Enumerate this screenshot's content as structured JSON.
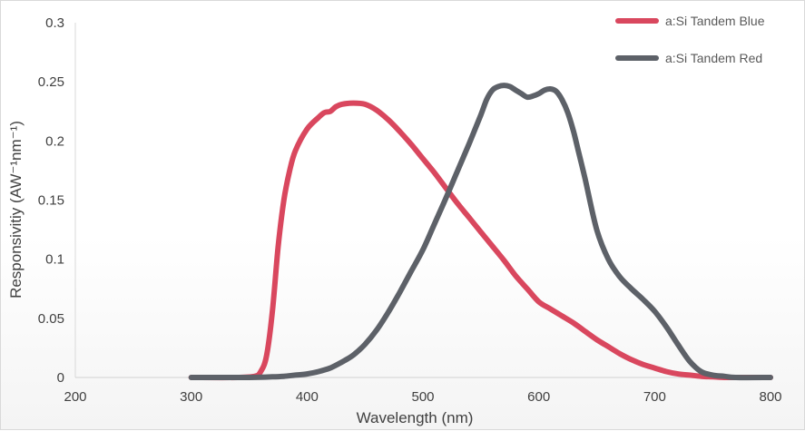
{
  "chart_data": {
    "type": "line",
    "title": "",
    "xlabel": "Wavelength (nm)",
    "ylabel": "Responsivitiy (AW⁻¹nm⁻¹)",
    "xlim": [
      200,
      800
    ],
    "ylim": [
      0,
      0.3
    ],
    "xticks": [
      "200",
      "300",
      "400",
      "500",
      "600",
      "700",
      "800"
    ],
    "yticks": [
      "0",
      "0.05",
      "0.1",
      "0.15",
      "0.2",
      "0.25",
      "0.3"
    ],
    "grid": false,
    "legend_position": "top-right",
    "series": [
      {
        "name": "a:Si Tandem Blue",
        "color": "#d9475e",
        "x": [
          300,
          340,
          355,
          360,
          365,
          370,
          375,
          380,
          385,
          390,
          400,
          410,
          415,
          420,
          425,
          430,
          440,
          450,
          460,
          470,
          480,
          490,
          500,
          510,
          520,
          530,
          540,
          550,
          560,
          570,
          580,
          590,
          600,
          610,
          620,
          630,
          640,
          650,
          660,
          670,
          680,
          690,
          700,
          710,
          720,
          730,
          740,
          750,
          760,
          770,
          800
        ],
        "y": [
          0,
          0,
          0.001,
          0.005,
          0.018,
          0.055,
          0.11,
          0.15,
          0.175,
          0.192,
          0.21,
          0.22,
          0.224,
          0.225,
          0.229,
          0.231,
          0.232,
          0.231,
          0.226,
          0.218,
          0.208,
          0.197,
          0.185,
          0.173,
          0.16,
          0.147,
          0.135,
          0.123,
          0.111,
          0.099,
          0.086,
          0.075,
          0.064,
          0.058,
          0.052,
          0.046,
          0.039,
          0.032,
          0.026,
          0.02,
          0.015,
          0.011,
          0.008,
          0.005,
          0.003,
          0.002,
          0.001,
          0.0005,
          0,
          0,
          0
        ]
      },
      {
        "name": "a:Si Tandem Red",
        "color": "#5d6168",
        "x": [
          300,
          350,
          370,
          380,
          390,
          400,
          410,
          420,
          430,
          440,
          450,
          460,
          470,
          480,
          490,
          500,
          510,
          520,
          530,
          540,
          550,
          555,
          560,
          565,
          570,
          575,
          580,
          585,
          590,
          595,
          600,
          605,
          610,
          615,
          620,
          625,
          630,
          635,
          640,
          650,
          660,
          670,
          680,
          690,
          700,
          710,
          720,
          730,
          740,
          750,
          760,
          770,
          800
        ],
        "y": [
          0,
          0,
          0.0005,
          0.001,
          0.002,
          0.003,
          0.005,
          0.008,
          0.013,
          0.019,
          0.028,
          0.04,
          0.055,
          0.072,
          0.09,
          0.108,
          0.13,
          0.152,
          0.175,
          0.198,
          0.222,
          0.235,
          0.243,
          0.246,
          0.247,
          0.246,
          0.243,
          0.24,
          0.237,
          0.238,
          0.24,
          0.243,
          0.244,
          0.242,
          0.235,
          0.224,
          0.208,
          0.188,
          0.168,
          0.125,
          0.1,
          0.085,
          0.075,
          0.066,
          0.056,
          0.043,
          0.028,
          0.014,
          0.005,
          0.002,
          0.001,
          0,
          0
        ]
      }
    ]
  }
}
